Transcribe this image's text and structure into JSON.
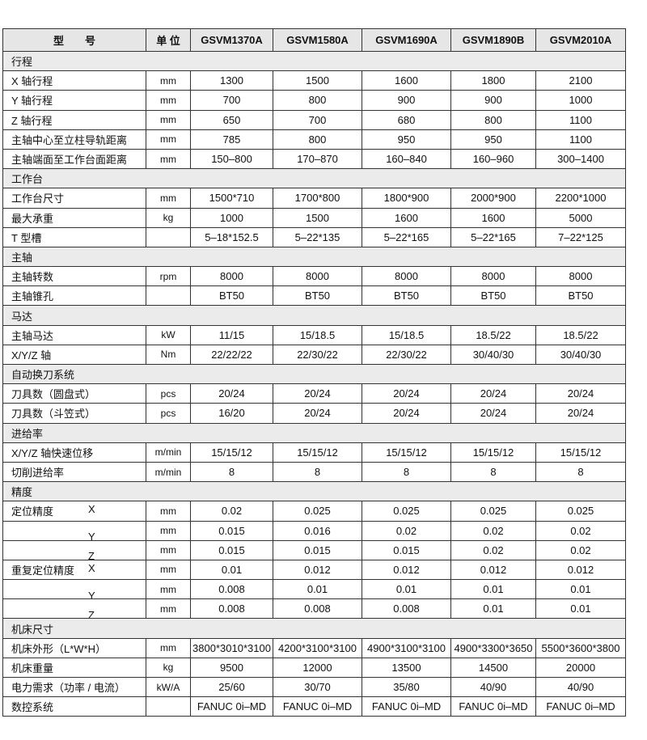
{
  "header": {
    "model_label": "型　　号",
    "unit_label": "单 位",
    "models": [
      "GSVM1370A",
      "GSVM1580A",
      "GSVM1690A",
      "GSVM1890B",
      "GSVM2010A"
    ]
  },
  "rows": [
    {
      "section": "行程"
    },
    {
      "label": "X 轴行程",
      "unit": "mm",
      "values": [
        "1300",
        "1500",
        "1600",
        "1800",
        "2100"
      ]
    },
    {
      "label": "Y 轴行程",
      "unit": "mm",
      "values": [
        "700",
        "800",
        "900",
        "900",
        "1000"
      ]
    },
    {
      "label": "Z 轴行程",
      "unit": "mm",
      "values": [
        "650",
        "700",
        "680",
        "800",
        "1100"
      ]
    },
    {
      "label": "主轴中心至立柱导轨距离",
      "unit": "mm",
      "values": [
        "785",
        "800",
        "950",
        "950",
        "1100"
      ]
    },
    {
      "label": "主轴端面至工作台面距离",
      "unit": "mm",
      "values": [
        "150–800",
        "170–870",
        "160–840",
        "160–960",
        "300–1400"
      ]
    },
    {
      "section": "工作台"
    },
    {
      "label": "工作台尺寸",
      "unit": "mm",
      "values": [
        "1500*710",
        "1700*800",
        "1800*900",
        "2000*900",
        "2200*1000"
      ]
    },
    {
      "label": "最大承重",
      "unit": "kg",
      "values": [
        "1000",
        "1500",
        "1600",
        "1600",
        "5000"
      ]
    },
    {
      "label": "T 型槽",
      "unit": "",
      "values": [
        "5–18*152.5",
        "5–22*135",
        "5–22*165",
        "5–22*165",
        "7–22*125"
      ]
    },
    {
      "section": "主轴"
    },
    {
      "label": "主轴转数",
      "unit": "rpm",
      "values": [
        "8000",
        "8000",
        "8000",
        "8000",
        "8000"
      ]
    },
    {
      "label": "主轴锥孔",
      "unit": "",
      "values": [
        "BT50",
        "BT50",
        "BT50",
        "BT50",
        "BT50"
      ]
    },
    {
      "section": "马达"
    },
    {
      "label": "主轴马达",
      "unit": "kW",
      "values": [
        "11/15",
        "15/18.5",
        "15/18.5",
        "18.5/22",
        "18.5/22"
      ]
    },
    {
      "label": "X/Y/Z 轴",
      "unit": "Nm",
      "values": [
        "22/22/22",
        "22/30/22",
        "22/30/22",
        "30/40/30",
        "30/40/30"
      ]
    },
    {
      "section": "自动换刀系统"
    },
    {
      "label": "刀具数（圆盘式）",
      "unit": "pcs",
      "values": [
        "20/24",
        "20/24",
        "20/24",
        "20/24",
        "20/24"
      ]
    },
    {
      "label": "刀具数（斗笠式）",
      "unit": "pcs",
      "values": [
        "16/20",
        "20/24",
        "20/24",
        "20/24",
        "20/24"
      ]
    },
    {
      "section": "进给率"
    },
    {
      "label": "X/Y/Z 轴快速位移",
      "unit": "m/min",
      "values": [
        "15/15/12",
        "15/15/12",
        "15/15/12",
        "15/15/12",
        "15/15/12"
      ]
    },
    {
      "label": "切削进给率",
      "unit": "m/min",
      "values": [
        "8",
        "8",
        "8",
        "8",
        "8"
      ]
    },
    {
      "section": "精度"
    },
    {
      "label": "定位精度",
      "axis": "X",
      "unit": "mm",
      "values": [
        "0.02",
        "0.025",
        "0.025",
        "0.025",
        "0.025"
      ]
    },
    {
      "label": "",
      "axis": "Y",
      "unit": "mm",
      "values": [
        "0.015",
        "0.016",
        "0.02",
        "0.02",
        "0.02"
      ]
    },
    {
      "label": "",
      "axis": "Z",
      "unit": "mm",
      "values": [
        "0.015",
        "0.015",
        "0.015",
        "0.02",
        "0.02"
      ]
    },
    {
      "label": "重复定位精度",
      "axis": "X",
      "unit": "mm",
      "values": [
        "0.01",
        "0.012",
        "0.012",
        "0.012",
        "0.012"
      ]
    },
    {
      "label": "",
      "axis": "Y",
      "unit": "mm",
      "values": [
        "0.008",
        "0.01",
        "0.01",
        "0.01",
        "0.01"
      ]
    },
    {
      "label": "",
      "axis": "Z",
      "unit": "mm",
      "values": [
        "0.008",
        "0.008",
        "0.008",
        "0.01",
        "0.01"
      ]
    },
    {
      "section": "机床尺寸"
    },
    {
      "label": "机床外形（L*W*H）",
      "unit": "mm",
      "values": [
        "3800*3010*3100",
        "4200*3100*3100",
        "4900*3100*3100",
        "4900*3300*3650",
        "5500*3600*3800"
      ]
    },
    {
      "label": "机床重量",
      "unit": "kg",
      "values": [
        "9500",
        "12000",
        "13500",
        "14500",
        "20000"
      ]
    },
    {
      "label": "电力需求（功率 / 电流）",
      "unit": "kW/A",
      "values": [
        "25/60",
        "30/70",
        "35/80",
        "40/90",
        "40/90"
      ]
    },
    {
      "label": "数控系统",
      "unit": "",
      "values": [
        "FANUC 0i–MD",
        "FANUC 0i–MD",
        "FANUC 0i–MD",
        "FANUC 0i–MD",
        "FANUC 0i–MD"
      ]
    }
  ]
}
